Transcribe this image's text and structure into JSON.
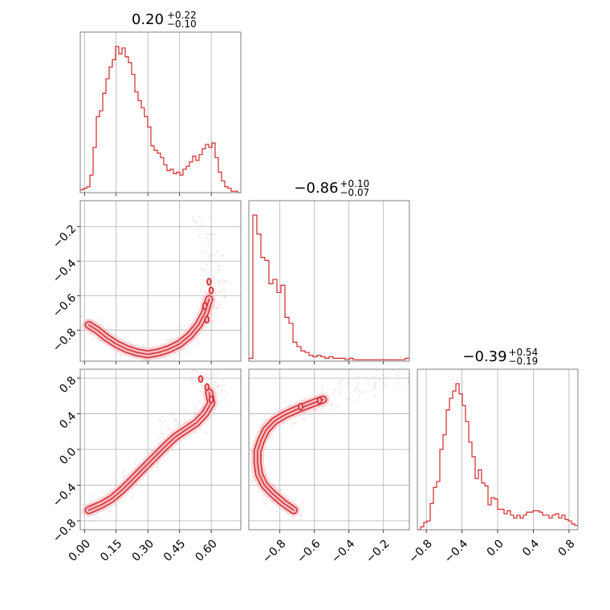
{
  "chart_data": {
    "type": "corner",
    "colors": {
      "accent": "#d62728",
      "fill": "#f2b8bf",
      "grid": "#b0b0b0",
      "frame": "#808080"
    },
    "parameters": [
      {
        "title": {
          "base": "0.20",
          "sup": "+0.22",
          "sub": "−0.10"
        },
        "range": [
          -0.02,
          0.74
        ]
      },
      {
        "title": {
          "base": "−0.86",
          "sup": "+0.10",
          "sub": "−0.07"
        },
        "range": [
          -0.98,
          -0.05
        ]
      },
      {
        "title": {
          "base": "−0.39",
          "sup": "+0.54",
          "sub": "−0.19"
        },
        "range": [
          -0.9,
          0.9
        ]
      }
    ],
    "ticks": [
      {
        "values": [
          0.0,
          0.15,
          0.3,
          0.45,
          0.6
        ],
        "labels": [
          "0.00",
          "0.15",
          "0.30",
          "0.45",
          "0.60"
        ]
      },
      {
        "values": [
          -0.8,
          -0.6,
          -0.4,
          -0.2
        ],
        "labels": [
          "−0.8",
          "−0.6",
          "−0.4",
          "−0.2"
        ]
      },
      {
        "values": [
          -0.8,
          -0.4,
          0.0,
          0.4,
          0.8
        ],
        "labels": [
          "−0.8",
          "−0.4",
          "0.0",
          "0.4",
          "0.8"
        ]
      }
    ],
    "histograms": [
      {
        "param": 0,
        "counts": [
          0.02,
          0.03,
          0.04,
          0.12,
          0.31,
          0.52,
          0.56,
          0.68,
          0.78,
          0.86,
          0.91,
          1.0,
          0.95,
          0.99,
          0.93,
          0.89,
          0.81,
          0.69,
          0.63,
          0.58,
          0.52,
          0.45,
          0.32,
          0.29,
          0.27,
          0.24,
          0.19,
          0.15,
          0.16,
          0.13,
          0.14,
          0.12,
          0.16,
          0.18,
          0.21,
          0.25,
          0.22,
          0.26,
          0.3,
          0.33,
          0.31,
          0.34,
          0.24,
          0.14,
          0.08,
          0.04,
          0.03,
          0.01,
          0.01,
          0.0
        ]
      },
      {
        "param": 1,
        "counts": [
          0.02,
          1.0,
          0.87,
          0.71,
          0.69,
          0.53,
          0.56,
          0.47,
          0.52,
          0.3,
          0.26,
          0.13,
          0.1,
          0.07,
          0.06,
          0.04,
          0.03,
          0.04,
          0.03,
          0.02,
          0.03,
          0.02,
          0.02,
          0.02,
          0.01,
          0.02,
          0.01,
          0.01,
          0.01,
          0.01,
          0.01,
          0.01,
          0.01,
          0.01,
          0.01,
          0.01,
          0.01,
          0.01,
          0.01,
          0.02
        ]
      },
      {
        "param": 2,
        "counts": [
          0.0,
          0.02,
          0.05,
          0.06,
          0.18,
          0.29,
          0.33,
          0.55,
          0.65,
          0.82,
          0.9,
          0.95,
          1.0,
          0.93,
          0.85,
          0.74,
          0.6,
          0.5,
          0.35,
          0.41,
          0.32,
          0.3,
          0.17,
          0.22,
          0.21,
          0.14,
          0.14,
          0.11,
          0.13,
          0.1,
          0.08,
          0.1,
          0.08,
          0.1,
          0.12,
          0.12,
          0.13,
          0.13,
          0.12,
          0.1,
          0.1,
          0.08,
          0.1,
          0.11,
          0.08,
          0.1,
          0.07,
          0.06,
          0.04,
          0.03
        ]
      }
    ],
    "joint": [
      {
        "xparam": 0,
        "yparam": 1,
        "ridge": [
          [
            0.02,
            -0.77
          ],
          [
            0.06,
            -0.8
          ],
          [
            0.1,
            -0.84
          ],
          [
            0.15,
            -0.88
          ],
          [
            0.2,
            -0.91
          ],
          [
            0.25,
            -0.93
          ],
          [
            0.3,
            -0.94
          ],
          [
            0.35,
            -0.93
          ],
          [
            0.4,
            -0.91
          ],
          [
            0.45,
            -0.88
          ],
          [
            0.5,
            -0.83
          ],
          [
            0.54,
            -0.77
          ],
          [
            0.57,
            -0.7
          ],
          [
            0.59,
            -0.62
          ]
        ],
        "extra": [
          [
            0.59,
            -0.52
          ],
          [
            0.6,
            -0.57
          ],
          [
            0.57,
            -0.66
          ],
          [
            0.58,
            -0.74
          ]
        ],
        "halo": [
          [
            0.55,
            -0.2
          ],
          [
            0.58,
            -0.3
          ],
          [
            0.6,
            -0.35
          ],
          [
            0.62,
            -0.42
          ],
          [
            0.6,
            -0.48
          ],
          [
            0.63,
            -0.55
          ],
          [
            0.62,
            -0.62
          ],
          [
            0.61,
            -0.7
          ]
        ]
      },
      {
        "xparam": 0,
        "yparam": 2,
        "ridge": [
          [
            0.02,
            -0.68
          ],
          [
            0.08,
            -0.62
          ],
          [
            0.13,
            -0.55
          ],
          [
            0.18,
            -0.45
          ],
          [
            0.23,
            -0.33
          ],
          [
            0.28,
            -0.21
          ],
          [
            0.33,
            -0.09
          ],
          [
            0.38,
            0.03
          ],
          [
            0.43,
            0.14
          ],
          [
            0.48,
            0.22
          ],
          [
            0.53,
            0.3
          ],
          [
            0.57,
            0.4
          ],
          [
            0.6,
            0.52
          ],
          [
            0.59,
            0.64
          ]
        ],
        "extra": [
          [
            0.6,
            0.56
          ],
          [
            0.55,
            0.79
          ],
          [
            0.58,
            0.7
          ]
        ],
        "halo": [
          [
            0.5,
            0.85
          ],
          [
            0.55,
            0.82
          ],
          [
            0.62,
            0.75
          ],
          [
            0.63,
            0.6
          ],
          [
            0.45,
            0.35
          ],
          [
            0.4,
            0.25
          ]
        ]
      },
      {
        "xparam": 1,
        "yparam": 2,
        "ridge": [
          [
            -0.72,
            -0.68
          ],
          [
            -0.78,
            -0.6
          ],
          [
            -0.84,
            -0.5
          ],
          [
            -0.89,
            -0.4
          ],
          [
            -0.92,
            -0.28
          ],
          [
            -0.93,
            -0.15
          ],
          [
            -0.93,
            -0.02
          ],
          [
            -0.91,
            0.1
          ],
          [
            -0.88,
            0.22
          ],
          [
            -0.83,
            0.32
          ],
          [
            -0.77,
            0.39
          ],
          [
            -0.7,
            0.45
          ],
          [
            -0.62,
            0.51
          ],
          [
            -0.55,
            0.56
          ]
        ],
        "extra": [
          [
            -0.68,
            0.48
          ],
          [
            -0.57,
            0.55
          ]
        ],
        "halo": [
          [
            -0.5,
            0.6
          ],
          [
            -0.4,
            0.66
          ],
          [
            -0.3,
            0.72
          ],
          [
            -0.2,
            0.78
          ],
          [
            -0.1,
            0.84
          ]
        ]
      }
    ]
  }
}
